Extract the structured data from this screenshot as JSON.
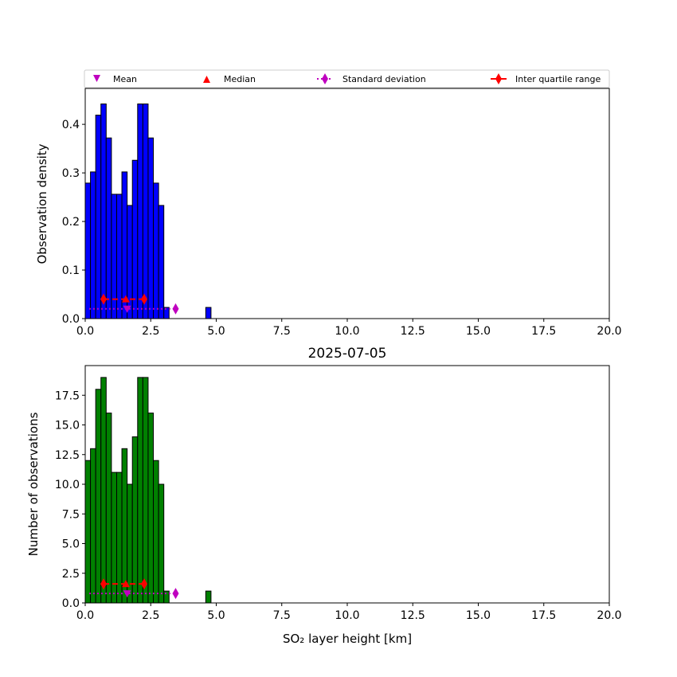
{
  "chart_data": [
    {
      "type": "bar",
      "ylabel": "Observation density",
      "xlabel": "",
      "title": "",
      "xlim": [
        0,
        20
      ],
      "ylim": [
        0,
        0.474
      ],
      "color": "#0000ff",
      "bin_width": 0.2,
      "bin_starts": [
        0,
        0.2,
        0.4,
        0.6,
        0.8,
        1.0,
        1.2,
        1.4,
        1.6,
        1.8,
        2.0,
        2.2,
        2.4,
        2.6,
        2.8,
        3.0,
        4.6
      ],
      "values": [
        0.279,
        0.302,
        0.419,
        0.442,
        0.372,
        0.256,
        0.256,
        0.302,
        0.233,
        0.326,
        0.442,
        0.442,
        0.372,
        0.279,
        0.233,
        0.023,
        0.023
      ],
      "xticks": [
        "0.0",
        "2.5",
        "5.0",
        "7.5",
        "10.0",
        "12.5",
        "15.0",
        "17.5",
        "20.0"
      ],
      "yticks": [
        "0.0",
        "0.1",
        "0.2",
        "0.3",
        "0.4"
      ],
      "ytick_values": [
        0,
        0.1,
        0.2,
        0.3,
        0.4
      ],
      "stats": {
        "iqr": [
          0.7,
          2.25
        ],
        "median": 1.55,
        "mean": 1.6,
        "std_end": 3.45,
        "marker_y_iqr": 0.04,
        "marker_y_mean": 0.02
      }
    },
    {
      "type": "bar",
      "title": "2025-07-05",
      "ylabel": "Number of observations",
      "xlabel": "SO₂ layer height [km]",
      "xlim": [
        0,
        20
      ],
      "ylim": [
        0,
        20
      ],
      "color": "#008000",
      "bin_width": 0.2,
      "bin_starts": [
        0,
        0.2,
        0.4,
        0.6,
        0.8,
        1.0,
        1.2,
        1.4,
        1.6,
        1.8,
        2.0,
        2.2,
        2.4,
        2.6,
        2.8,
        3.0,
        4.6
      ],
      "values": [
        12,
        13,
        18,
        19,
        16,
        11,
        11,
        13,
        10,
        14,
        19,
        19,
        16,
        12,
        10,
        1,
        1
      ],
      "xticks": [
        "0.0",
        "2.5",
        "5.0",
        "7.5",
        "10.0",
        "12.5",
        "15.0",
        "17.5",
        "20.0"
      ],
      "yticks": [
        "0.0",
        "2.5",
        "5.0",
        "7.5",
        "10.0",
        "12.5",
        "15.0",
        "17.5"
      ],
      "ytick_values": [
        0,
        2.5,
        5,
        7.5,
        10,
        12.5,
        15,
        17.5
      ],
      "stats": {
        "iqr": [
          0.7,
          2.25
        ],
        "median": 1.55,
        "mean": 1.6,
        "std_end": 3.45,
        "marker_y_iqr": 1.6,
        "marker_y_mean": 0.8
      }
    }
  ],
  "legend": {
    "placement": "top",
    "items": [
      {
        "label": "Mean",
        "color": "#bf00bf"
      },
      {
        "label": "Median",
        "color": "#ff0000"
      },
      {
        "label": "Standard deviation",
        "color": "#bf00bf"
      },
      {
        "label": "Inter quartile range",
        "color": "#ff0000"
      }
    ]
  }
}
